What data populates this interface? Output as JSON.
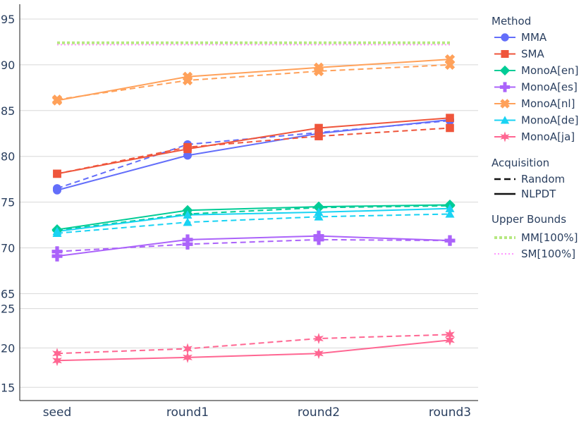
{
  "chart_data": {
    "type": "line",
    "categories": [
      "seed",
      "round1",
      "round2",
      "round3"
    ],
    "panels": [
      {
        "name": "upper",
        "ylim": [
          63.8,
          96
        ],
        "yticks": [
          65,
          70,
          75,
          80,
          85,
          90,
          95
        ]
      },
      {
        "name": "lower",
        "ylim": [
          13.5,
          25.5
        ],
        "yticks": [
          15,
          20,
          25
        ]
      }
    ],
    "grid": true,
    "legend_placement": "right",
    "legend": {
      "method": {
        "title": "Method",
        "items": [
          {
            "name": "MMA",
            "color": "#636efa",
            "marker": "circle"
          },
          {
            "name": "SMA",
            "color": "#ef553b",
            "marker": "square"
          },
          {
            "name": "MonoA[en]",
            "color": "#00cc96",
            "marker": "diamond"
          },
          {
            "name": "MonoA[es]",
            "color": "#ab63fa",
            "marker": "cross"
          },
          {
            "name": "MonoA[nl]",
            "color": "#ffa15a",
            "marker": "x"
          },
          {
            "name": "MonoA[de]",
            "color": "#19d3f3",
            "marker": "triangle-up"
          },
          {
            "name": "MonoA[ja]",
            "color": "#ff6692",
            "marker": "star"
          }
        ]
      },
      "acquisition": {
        "title": "Acquisition",
        "items": [
          {
            "name": "Random",
            "dash": "dashed"
          },
          {
            "name": "NLPDT",
            "dash": "solid"
          }
        ]
      },
      "upper_bounds": {
        "title": "Upper Bounds",
        "items": [
          {
            "name": "MM[100%]",
            "color": "#b6e880",
            "style": "dotted-thick"
          },
          {
            "name": "SM[100%]",
            "color": "#ff97ff",
            "style": "dotted-thin"
          }
        ]
      }
    },
    "series": [
      {
        "method": "MMA",
        "acquisition": "NLPDT",
        "panel": "upper",
        "values": [
          76.3,
          80.1,
          82.5,
          84.0
        ]
      },
      {
        "method": "MMA",
        "acquisition": "Random",
        "panel": "upper",
        "values": [
          76.5,
          81.3,
          82.6,
          83.9
        ]
      },
      {
        "method": "SMA",
        "acquisition": "NLPDT",
        "panel": "upper",
        "values": [
          78.1,
          80.8,
          83.1,
          84.2
        ]
      },
      {
        "method": "SMA",
        "acquisition": "Random",
        "panel": "upper",
        "values": [
          78.1,
          81.0,
          82.2,
          83.1
        ]
      },
      {
        "method": "MonoA[en]",
        "acquisition": "NLPDT",
        "panel": "upper",
        "values": [
          72.0,
          74.1,
          74.5,
          74.7
        ]
      },
      {
        "method": "MonoA[en]",
        "acquisition": "Random",
        "panel": "upper",
        "values": [
          71.9,
          73.7,
          74.4,
          74.6
        ]
      },
      {
        "method": "MonoA[es]",
        "acquisition": "NLPDT",
        "panel": "upper",
        "values": [
          69.1,
          70.9,
          71.3,
          70.8
        ]
      },
      {
        "method": "MonoA[es]",
        "acquisition": "Random",
        "panel": "upper",
        "values": [
          69.6,
          70.4,
          70.9,
          70.8
        ]
      },
      {
        "method": "MonoA[nl]",
        "acquisition": "NLPDT",
        "panel": "upper",
        "values": [
          86.1,
          88.7,
          89.7,
          90.6
        ]
      },
      {
        "method": "MonoA[nl]",
        "acquisition": "Random",
        "panel": "upper",
        "values": [
          86.2,
          88.3,
          89.3,
          90.0
        ]
      },
      {
        "method": "MonoA[de]",
        "acquisition": "NLPDT",
        "panel": "upper",
        "values": [
          71.8,
          73.6,
          73.9,
          74.3
        ]
      },
      {
        "method": "MonoA[de]",
        "acquisition": "Random",
        "panel": "upper",
        "values": [
          71.6,
          72.8,
          73.4,
          73.7
        ]
      },
      {
        "method": "MonoA[ja]",
        "acquisition": "NLPDT",
        "panel": "lower",
        "values": [
          18.4,
          18.8,
          19.3,
          21.0
        ]
      },
      {
        "method": "MonoA[ja]",
        "acquisition": "Random",
        "panel": "lower",
        "values": [
          19.3,
          19.9,
          21.2,
          21.7
        ]
      }
    ],
    "upper_bound_lines": [
      {
        "name": "MM[100%]",
        "panel": "upper",
        "value": 92.4
      },
      {
        "name": "SM[100%]",
        "panel": "upper",
        "value": 92.2
      }
    ]
  }
}
